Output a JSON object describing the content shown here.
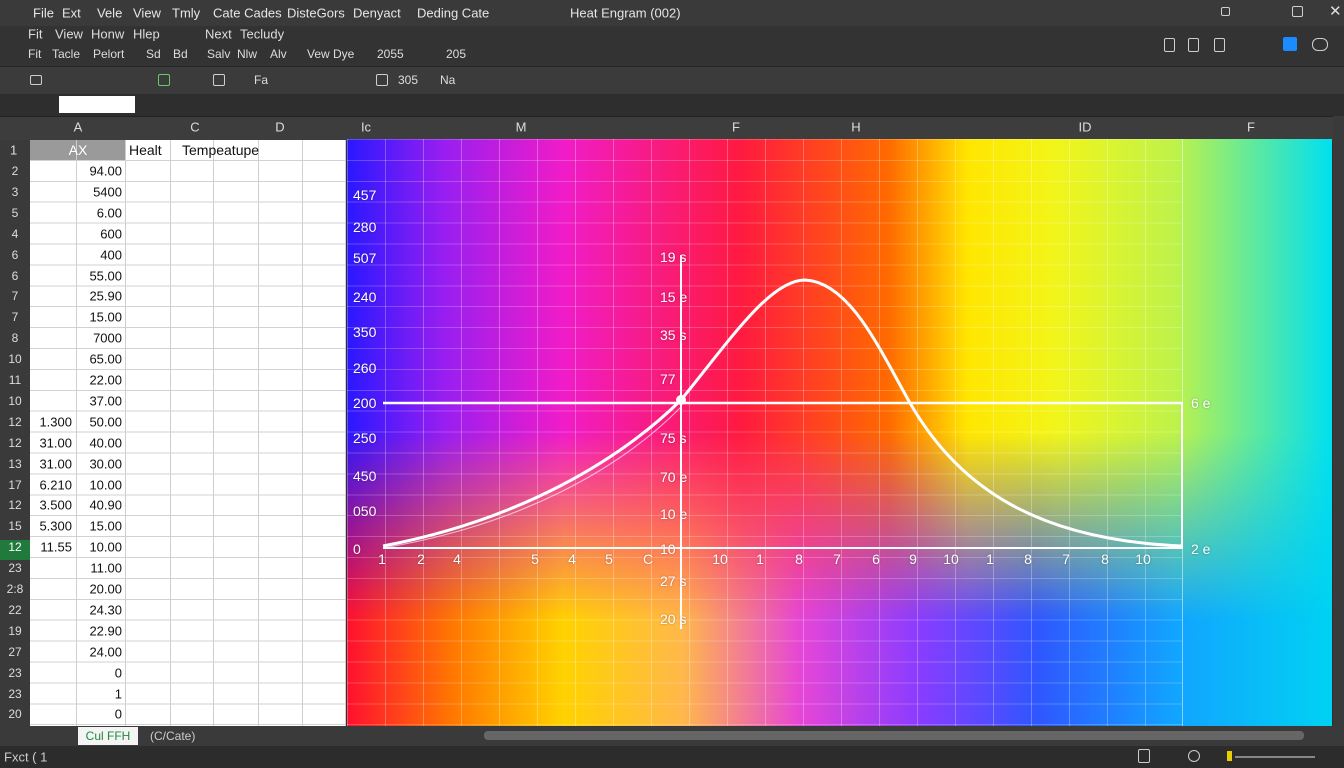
{
  "title_bar": {
    "menu": [
      "File",
      "Ext",
      "Vele",
      "View",
      "Tmly",
      "Cate Cades",
      "DisteGors",
      "Denyact",
      "Deding Cate"
    ],
    "window_title": "Heat Engram (002)"
  },
  "ribbon": {
    "row1": [
      "Fit",
      "View",
      "Honw",
      "Hlep",
      "Next",
      "Tecludy"
    ],
    "row2": [
      "Fit",
      "Tacle",
      "Pelort",
      "Sd",
      "Bd",
      "Salv",
      "Nlw",
      "Alv",
      "Vew Dye",
      "2055",
      "205"
    ]
  },
  "toolbar": [
    "Fa",
    "305",
    "Na"
  ],
  "columns": [
    "A",
    "C",
    "D"
  ],
  "chart_columns": [
    "Ic",
    "M",
    "F",
    "H",
    "ID",
    "F"
  ],
  "sheet": {
    "header": {
      "row": "1",
      "a": "AX",
      "b": "Healt",
      "c": "Tempeatupe"
    },
    "rows": [
      {
        "row": "2",
        "b": "94.00"
      },
      {
        "row": "3",
        "b": "5400"
      },
      {
        "row": "5",
        "b": "6.00"
      },
      {
        "row": "4",
        "b": "600"
      },
      {
        "row": "6",
        "b": "400"
      },
      {
        "row": "6",
        "b": "55.00"
      },
      {
        "row": "7",
        "b": "25.90"
      },
      {
        "row": "7",
        "b": "15.00"
      },
      {
        "row": "8",
        "b": "7000"
      },
      {
        "row": "10",
        "b": "65.00"
      },
      {
        "row": "11",
        "b": "22.00"
      },
      {
        "row": "10",
        "b": "37.00"
      },
      {
        "row": "12",
        "a": "1.300",
        "b": "50.00"
      },
      {
        "row": "12",
        "a": "31.00",
        "b": "40.00"
      },
      {
        "row": "13",
        "a": "31.00",
        "b": "30.00"
      },
      {
        "row": "17",
        "a": "6.210",
        "b": "10.00"
      },
      {
        "row": "12",
        "a": "3.500",
        "b": "40.90"
      },
      {
        "row": "15",
        "a": "5.300",
        "b": "15.00"
      },
      {
        "row": "12",
        "a": "11.55",
        "b": "10.00"
      },
      {
        "row": "23",
        "b": "11.00"
      },
      {
        "row": "2:8",
        "b": "20.00"
      },
      {
        "row": "22",
        "b": "24.30"
      },
      {
        "row": "19",
        "b": "22.90"
      },
      {
        "row": "27",
        "b": "24.00"
      },
      {
        "row": "23",
        "b": "0"
      },
      {
        "row": "23",
        "b": "1"
      },
      {
        "row": "20",
        "b": "0"
      }
    ]
  },
  "chart": {
    "y_labels": [
      "457",
      "280",
      "507",
      "240",
      "350",
      "260",
      "200",
      "250",
      "450",
      "050",
      "0"
    ],
    "center_labels": [
      "19 s",
      "15 e",
      "35 s",
      "77",
      "75 s",
      "70 e",
      "10 e",
      "10",
      "27 s",
      "20 s"
    ],
    "x_labels": [
      "1",
      "2",
      "4",
      "5",
      "4",
      "5",
      "C",
      "10",
      "1",
      "8",
      "7",
      "6",
      "9",
      "10",
      "1",
      "8",
      "7",
      "8",
      "10"
    ],
    "right_labels": [
      "6 e",
      "2 e"
    ]
  },
  "sheet_tabs": [
    "Cul FFH",
    "(C/Cate)"
  ],
  "status": "Fxct ( 1"
}
